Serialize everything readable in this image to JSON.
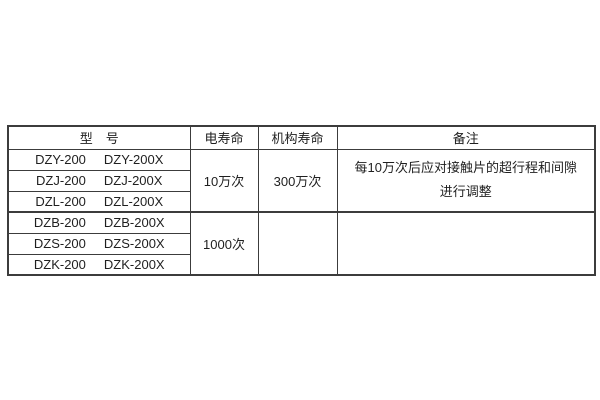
{
  "colors": {
    "background": "#ffffff",
    "table_border": "#3c3c3c",
    "text": "#1f1f1f"
  },
  "table": {
    "headers": {
      "model": "型　号",
      "electrical_life": "电寿命",
      "mechanism_life": "机构寿命",
      "remarks": "备注"
    },
    "groups": [
      {
        "rows": [
          {
            "model_a": "DZY-200",
            "model_b": "DZY-200X"
          },
          {
            "model_a": "DZJ-200",
            "model_b": "DZJ-200X"
          },
          {
            "model_a": "DZL-200",
            "model_b": "DZL-200X"
          }
        ],
        "electrical_life": "10万次",
        "mechanism_life": "300万次",
        "remarks_line1": "每10万次后应对接触片的超行程和间隙",
        "remarks_line2": "进行调整"
      },
      {
        "rows": [
          {
            "model_a": "DZB-200",
            "model_b": "DZB-200X"
          },
          {
            "model_a": "DZS-200",
            "model_b": "DZS-200X"
          },
          {
            "model_a": "DZK-200",
            "model_b": "DZK-200X"
          }
        ],
        "electrical_life": "1000次",
        "mechanism_life": "",
        "remarks_line1": "",
        "remarks_line2": ""
      }
    ]
  }
}
